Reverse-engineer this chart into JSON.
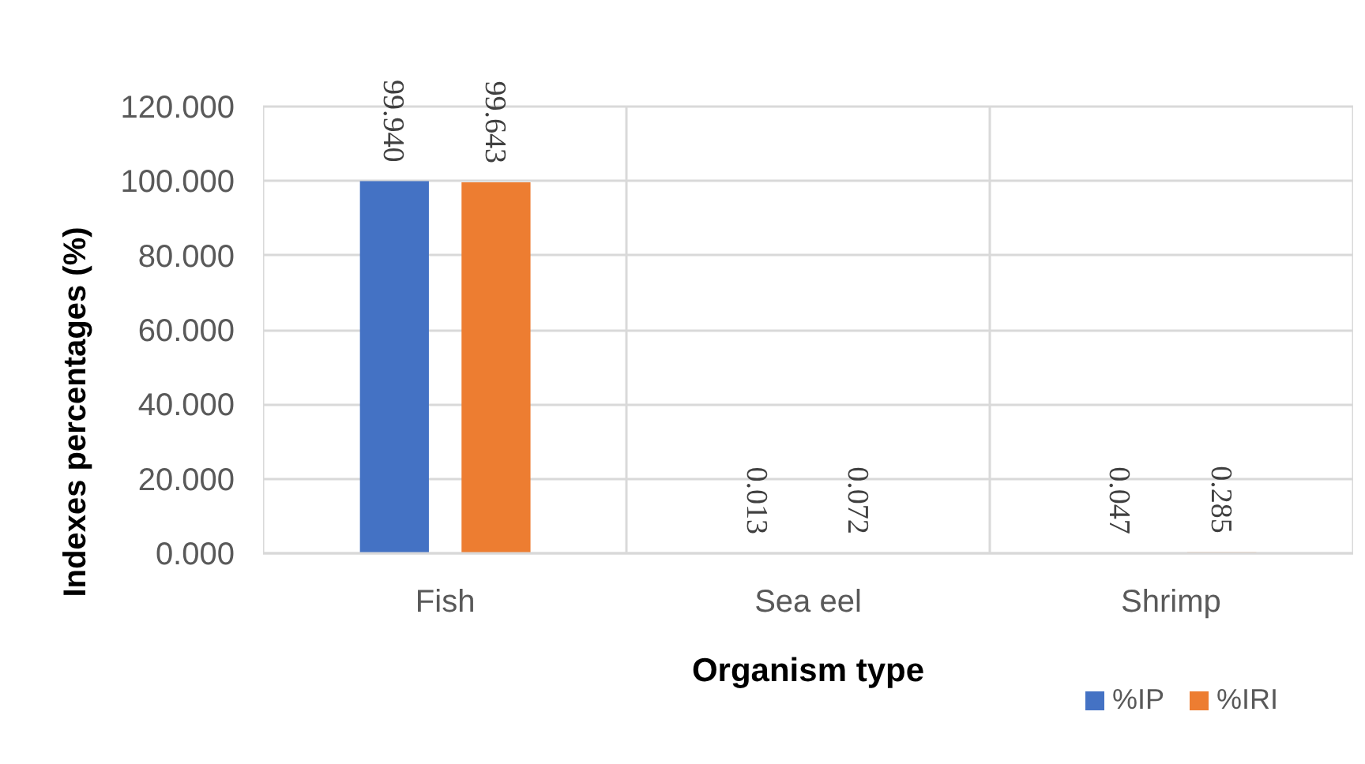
{
  "chart_data": {
    "type": "bar",
    "categories": [
      "Fish",
      "Sea eel",
      "Shrimp"
    ],
    "series": [
      {
        "name": "%IP",
        "color": "#4472c4",
        "values": [
          99.94,
          0.013,
          0.047
        ],
        "value_labels": [
          "99.940",
          "0.013",
          "0.047"
        ]
      },
      {
        "name": "%IRI",
        "color": "#ed7d31",
        "values": [
          99.643,
          0.072,
          0.285
        ],
        "value_labels": [
          "99.643",
          "0.072",
          "0.285"
        ]
      }
    ],
    "xlabel": "Organism type",
    "ylabel": "Indexes percentages (%)",
    "ylim": [
      0,
      120
    ],
    "yticks": [
      {
        "value": 0,
        "label": "0.000"
      },
      {
        "value": 20,
        "label": "20.000"
      },
      {
        "value": 40,
        "label": "40.000"
      },
      {
        "value": 60,
        "label": "60.000"
      },
      {
        "value": 80,
        "label": "80.000"
      },
      {
        "value": 100,
        "label": "100.000"
      },
      {
        "value": 120,
        "label": "120.000"
      }
    ],
    "grid": true,
    "legend": "bottom right"
  }
}
